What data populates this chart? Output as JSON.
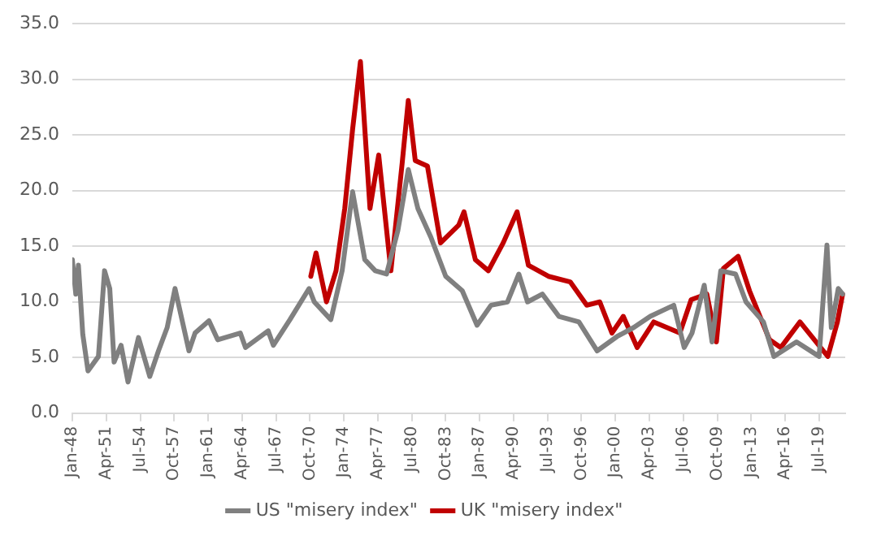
{
  "chart_data": {
    "type": "line",
    "xlim": [
      "1948-01",
      "2022-01"
    ],
    "xticks": [
      {
        "value": "1948-01",
        "label": "Jan-48"
      },
      {
        "value": "1951-04",
        "label": "Apr-51"
      },
      {
        "value": "1954-07",
        "label": "Jul-54"
      },
      {
        "value": "1957-10",
        "label": "Oct-57"
      },
      {
        "value": "1961-01",
        "label": "Jan-61"
      },
      {
        "value": "1964-04",
        "label": "Apr-64"
      },
      {
        "value": "1967-07",
        "label": "Jul-67"
      },
      {
        "value": "1970-10",
        "label": "Oct-70"
      },
      {
        "value": "1974-01",
        "label": "Jan-74"
      },
      {
        "value": "1977-04",
        "label": "Apr-77"
      },
      {
        "value": "1980-07",
        "label": "Jul-80"
      },
      {
        "value": "1983-10",
        "label": "Oct-83"
      },
      {
        "value": "1987-01",
        "label": "Jan-87"
      },
      {
        "value": "1990-04",
        "label": "Apr-90"
      },
      {
        "value": "1993-07",
        "label": "Jul-93"
      },
      {
        "value": "1996-10",
        "label": "Oct-96"
      },
      {
        "value": "2000-01",
        "label": "Jan-00"
      },
      {
        "value": "2003-04",
        "label": "Apr-03"
      },
      {
        "value": "2006-07",
        "label": "Jul-06"
      },
      {
        "value": "2009-10",
        "label": "Oct-09"
      },
      {
        "value": "2013-01",
        "label": "Jan-13"
      },
      {
        "value": "2016-04",
        "label": "Apr-16"
      },
      {
        "value": "2019-07",
        "label": "Jul-19"
      }
    ],
    "ylim": [
      0,
      35
    ],
    "yticks": [
      {
        "value": 0,
        "label": "0.0"
      },
      {
        "value": 5,
        "label": "5.0"
      },
      {
        "value": 10,
        "label": "10.0"
      },
      {
        "value": 15,
        "label": "15.0"
      },
      {
        "value": 20,
        "label": "20.0"
      },
      {
        "value": 25,
        "label": "25.0"
      },
      {
        "value": 30,
        "label": "30.0"
      },
      {
        "value": 35,
        "label": "35.0"
      }
    ],
    "grid": "y",
    "legend": "bottom",
    "marker": "none",
    "line_style": "solid",
    "series": [
      {
        "name": "US \"misery index\"",
        "color": "#808080",
        "x": [
          "1948-01",
          "1948-05",
          "1948-08",
          "1949-01",
          "1949-07",
          "1950-07",
          "1951-02",
          "1951-08",
          "1952-01",
          "1952-09",
          "1953-05",
          "1954-05",
          "1955-06",
          "1956-04",
          "1957-02",
          "1957-11",
          "1959-03",
          "1959-10",
          "1961-02",
          "1961-12",
          "1964-02",
          "1964-08",
          "1966-10",
          "1967-04",
          "1968-11",
          "1970-09",
          "1971-03",
          "1972-10",
          "1973-11",
          "1974-11",
          "1976-01",
          "1977-01",
          "1978-02",
          "1979-03",
          "1980-03",
          "1981-02",
          "1982-05",
          "1983-10",
          "1985-05",
          "1986-10",
          "1988-02",
          "1989-09",
          "1990-10",
          "1991-08",
          "1993-01",
          "1994-08",
          "1996-07",
          "1998-04",
          "2000-03",
          "2001-10",
          "2003-05",
          "2005-08",
          "2006-08",
          "2007-05",
          "2008-07",
          "2009-04",
          "2010-02",
          "2011-07",
          "2012-07",
          "2014-03",
          "2015-03",
          "2017-05",
          "2019-07",
          "2020-04",
          "2020-09",
          "2021-05",
          "2021-10"
        ],
        "values": [
          13.8,
          10.7,
          13.3,
          7.1,
          3.8,
          5.1,
          12.8,
          11.2,
          4.6,
          6.1,
          2.8,
          6.8,
          3.3,
          5.6,
          7.7,
          11.2,
          5.6,
          7.2,
          8.3,
          6.6,
          7.2,
          5.9,
          7.4,
          6.1,
          8.4,
          11.2,
          10,
          8.4,
          12.8,
          19.9,
          13.8,
          12.8,
          12.5,
          16.4,
          21.9,
          18.4,
          15.8,
          12.3,
          11,
          7.9,
          9.7,
          10,
          12.5,
          10,
          10.7,
          8.7,
          8.2,
          5.6,
          6.9,
          7.7,
          8.7,
          9.7,
          5.9,
          7.2,
          11.5,
          6.4,
          12.8,
          12.5,
          10,
          8.2,
          5.1,
          6.4,
          5.1,
          15.1,
          7.7,
          11.2,
          10.7
        ]
      },
      {
        "name": "UK \"misery index\"",
        "color": "#c00000",
        "x": [
          "1970-11",
          "1971-05",
          "1972-05",
          "1973-04",
          "1974-02",
          "1974-11",
          "1975-08",
          "1976-07",
          "1977-05",
          "1978-07",
          "1979-08",
          "1980-03",
          "1980-11",
          "1982-01",
          "1983-04",
          "1985-01",
          "1985-07",
          "1986-08",
          "1987-11",
          "1989-04",
          "1990-08",
          "1991-09",
          "1993-08",
          "1995-09",
          "1997-04",
          "1998-07",
          "1999-09",
          "2000-10",
          "2002-02",
          "2003-09",
          "2006-03",
          "2007-04",
          "2008-10",
          "2009-09",
          "2010-05",
          "2011-10",
          "2012-11",
          "2014-10",
          "2015-11",
          "2017-09",
          "2020-05",
          "2021-04",
          "2021-10"
        ],
        "values": [
          12.3,
          14.4,
          10,
          12.8,
          18.4,
          25.5,
          31.6,
          18.4,
          23.2,
          12.8,
          22.5,
          28.1,
          22.7,
          22.2,
          15.3,
          16.9,
          18.1,
          13.8,
          12.8,
          15.3,
          18.1,
          13.3,
          12.3,
          11.8,
          9.7,
          10,
          7.2,
          8.7,
          5.9,
          8.2,
          7.2,
          10.2,
          10.7,
          6.4,
          13,
          14.1,
          11,
          6.6,
          5.9,
          8.2,
          5.1,
          8.2,
          10.7
        ]
      }
    ]
  }
}
